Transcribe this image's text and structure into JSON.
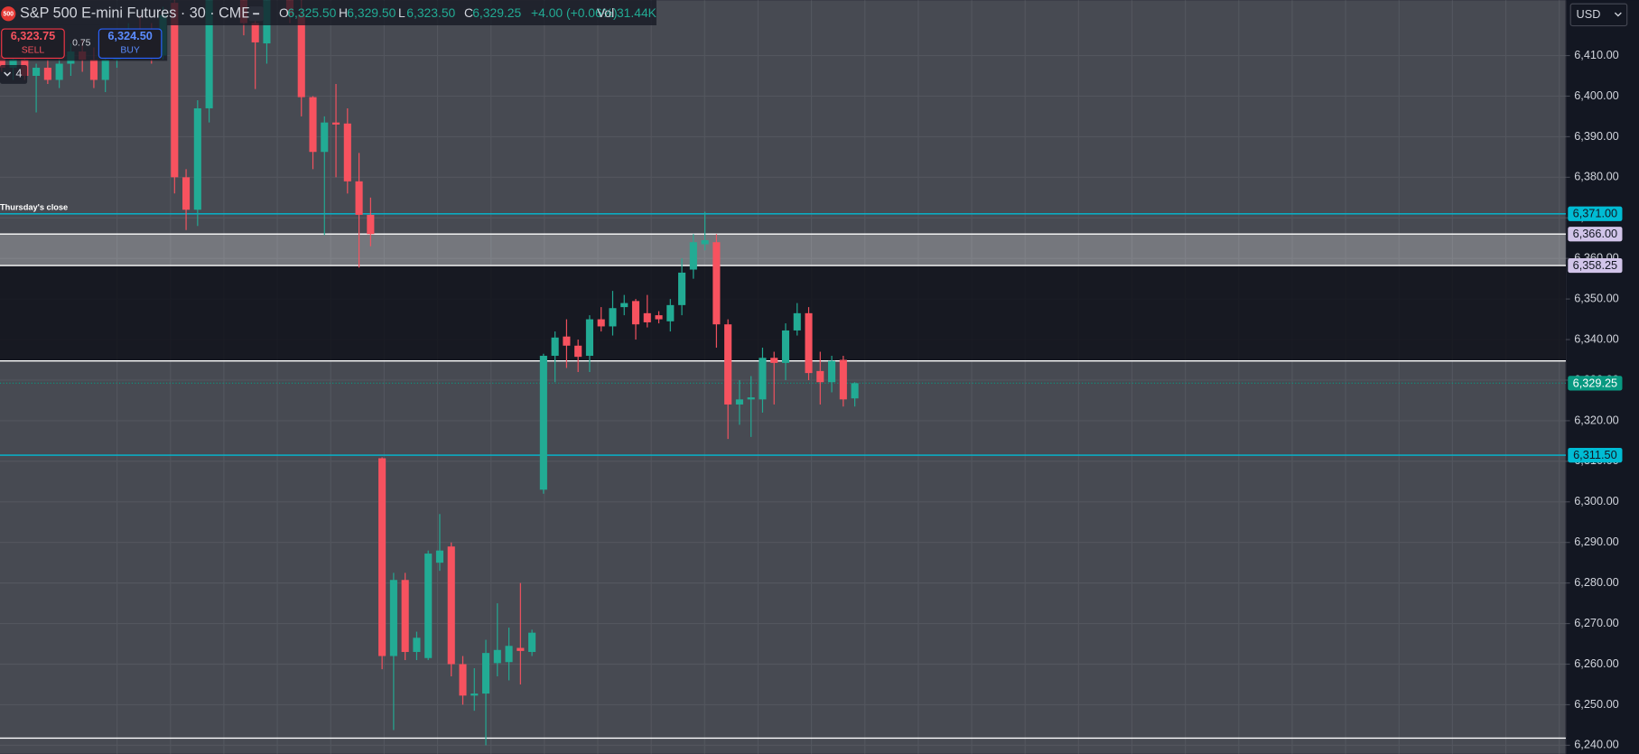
{
  "chart_data": {
    "type": "candlestick",
    "title": "S&P 500 E-mini Futures · 30 · CME",
    "logo": "500",
    "legend": {
      "o": "O",
      "open": "6,325.50",
      "h": "H",
      "high": "6,329.50",
      "l": "L",
      "low": "6,323.50",
      "c": "C",
      "close": "6,329.25",
      "change": "+4.00 (+0.06%)",
      "vol": "Vol",
      "volume": "31.44K"
    },
    "trade": {
      "sell_price": "6,323.75",
      "sell": "SELL",
      "spread": "0.75",
      "buy_price": "6,324.50",
      "buy": "BUY",
      "indicators": "4"
    },
    "currency": "USD",
    "annotation": "Thursday's close",
    "up_color": "#22ab94",
    "down_color": "#f7525f",
    "background": "#474a52",
    "grid": true,
    "ylim": [
      6237.9,
      6423.65
    ],
    "yticks": [
      {
        "value": 6410,
        "label": "6,410.00"
      },
      {
        "value": 6400,
        "label": "6,400.00"
      },
      {
        "value": 6390,
        "label": "6,390.00"
      },
      {
        "value": 6380,
        "label": "6,380.00"
      },
      {
        "value": 6370,
        "label": "6,370.00"
      },
      {
        "value": 6360,
        "label": "6,360.00"
      },
      {
        "value": 6350,
        "label": "6,350.00"
      },
      {
        "value": 6340,
        "label": "6,340.00"
      },
      {
        "value": 6330,
        "label": "6,330.00"
      },
      {
        "value": 6320,
        "label": "6,320.00"
      },
      {
        "value": 6310,
        "label": "6,310.00"
      },
      {
        "value": 6300,
        "label": "6,300.00"
      },
      {
        "value": 6290,
        "label": "6,290.00"
      },
      {
        "value": 6280,
        "label": "6,280.00"
      },
      {
        "value": 6270,
        "label": "6,270.00"
      },
      {
        "value": 6260,
        "label": "6,260.00"
      },
      {
        "value": 6250,
        "label": "6,250.00"
      },
      {
        "value": 6240,
        "label": "6,240.00"
      }
    ],
    "open": [
      6410,
      6407,
      6409,
      6405,
      6407,
      6404,
      6408,
      6411,
      6409,
      6404,
      6409,
      6413,
      6416,
      6414,
      6410,
      6423,
      6380,
      6372,
      6397,
      6428,
      6435,
      6430,
      6418,
      6413,
      6428,
      6434,
      6420,
      6399.75,
      6386.25,
      6393.5,
      6393.25,
      6379,
      6370.75,
      6310.75,
      6262,
      6280.75,
      6263,
      6261.5,
      6285,
      6289,
      6260,
      6252.25,
      6252.75,
      6260.25,
      6260.5,
      6264,
      6263,
      6303,
      6336,
      6340.75,
      6338.5,
      6336,
      6345,
      6343.25,
      6348,
      6349.5,
      6346.5,
      6346,
      6344.5,
      6348.5,
      6357.25,
      6363.5,
      6364,
      6343.75,
      6324,
      6325.25,
      6325.25,
      6335.5,
      6334.25,
      6342.25,
      6346.5,
      6332.25,
      6329.5,
      6335,
      6325.5
    ],
    "high": [
      6413,
      6411,
      6412,
      6408,
      6409,
      6410,
      6413,
      6414,
      6412,
      6412,
      6415,
      6418,
      6420,
      6418,
      6422,
      6428,
      6382,
      6399,
      6430,
      6440,
      6438,
      6433,
      6420,
      6430,
      6438,
      6436,
      6428,
      6400,
      6395,
      6403,
      6397,
      6386,
      6375,
      6311,
      6282.5,
      6282.5,
      6268,
      6288,
      6297,
      6290,
      6262,
      6259,
      6266,
      6275,
      6269,
      6280,
      6268.5,
      6336.5,
      6342,
      6345,
      6340,
      6346,
      6348,
      6352,
      6351,
      6350,
      6351,
      6347,
      6350,
      6360,
      6366,
      6371.5,
      6366,
      6345,
      6330,
      6331,
      6338,
      6337,
      6344,
      6349,
      6348,
      6337,
      6336,
      6336,
      6329.5
    ],
    "low": [
      6406,
      6404,
      6404,
      6396,
      6403,
      6402,
      6405,
      6406,
      6402,
      6401,
      6407,
      6410,
      6412,
      6408,
      6409,
      6376,
      6367,
      6368,
      6393.5,
      6425,
      6427,
      6415,
      6401.75,
      6408,
      6424,
      6418,
      6395,
      6382,
      6365.75,
      6380,
      6376,
      6357.75,
      6363,
      6258.75,
      6243.75,
      6261,
      6261,
      6261,
      6283,
      6257,
      6250,
      6248.5,
      6240,
      6257,
      6256,
      6255,
      6262,
      6302,
      6329.5,
      6333,
      6332,
      6332,
      6342,
      6341,
      6346,
      6340,
      6343,
      6344,
      6342,
      6346,
      6355,
      6362,
      6338,
      6315.5,
      6319,
      6316,
      6322,
      6324,
      6330,
      6341,
      6330,
      6324,
      6327,
      6323.5,
      6323.5
    ],
    "close": [
      6407,
      6409,
      6405,
      6407,
      6404,
      6408,
      6411,
      6409,
      6404,
      6409,
      6413,
      6416,
      6414,
      6410,
      6420,
      6380,
      6372,
      6397,
      6428,
      6435,
      6430,
      6418,
      6413.25,
      6428,
      6434,
      6420,
      6399.75,
      6386.25,
      6393.5,
      6393,
      6379,
      6370.75,
      6366,
      6262,
      6280.75,
      6263,
      6266.5,
      6287.25,
      6288,
      6260,
      6252.25,
      6252.75,
      6262.75,
      6263.5,
      6264.5,
      6263.25,
      6267.75,
      6336,
      6340.5,
      6338.5,
      6335.75,
      6345,
      6343.25,
      6347.75,
      6349,
      6343.75,
      6344.25,
      6345,
      6348.5,
      6356.5,
      6364,
      6364.5,
      6343.75,
      6324,
      6325.25,
      6325.75,
      6335.5,
      6334.25,
      6342.25,
      6346.5,
      6331.75,
      6329.5,
      6334.75,
      6325.25,
      6329.25
    ],
    "zones": [
      {
        "from": 6366,
        "to": 6358.25,
        "color": "rgba(255,255,255,0.25)"
      },
      {
        "from": 6358.25,
        "to": 6334.75,
        "color": "rgba(10,12,20,0.78)"
      }
    ],
    "lines": [
      {
        "value": 6334.75,
        "color": "#ffffff"
      },
      {
        "value": 6241.75,
        "color": "#ffffff"
      }
    ],
    "levels": [
      {
        "value": 6371,
        "label": "6,371.00",
        "color": "#00bcd4",
        "line_color": "#00bcd4",
        "dash": false
      },
      {
        "value": 6366,
        "label": "6,366.00",
        "color": "#d1c4e9",
        "line_color": "#ffffff",
        "dash": false
      },
      {
        "value": 6358.25,
        "label": "6,358.25",
        "color": "#d1c4e9",
        "line_color": "#ffffff",
        "dash": false
      },
      {
        "value": 6329.25,
        "label": "6,329.25",
        "color": "#089981",
        "line_color": "#089981",
        "dash": true
      },
      {
        "value": 6311.5,
        "label": "6,311.50",
        "color": "#00bcd4",
        "line_color": "#00bcd4",
        "dash": false
      }
    ]
  }
}
